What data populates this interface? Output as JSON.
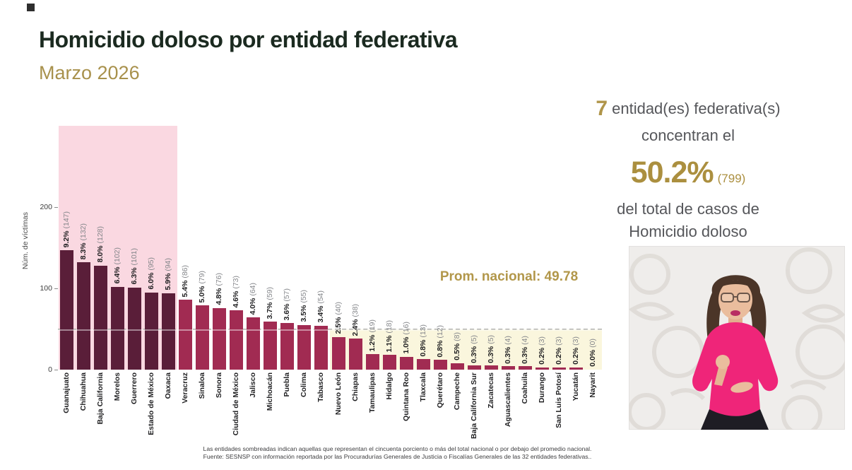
{
  "header": {
    "title": "Homicidio doloso por entidad federativa",
    "subtitle": "Marzo 2026"
  },
  "summary": {
    "count": "7",
    "line1": "entidad(es) federativa(s)",
    "line2": "concentran el",
    "pct": "50.2%",
    "pct_count": "(799)",
    "line3": "del total de casos de",
    "line4": "Homicidio doloso"
  },
  "chart_data": {
    "type": "bar",
    "title": "Homicidio doloso por entidad federativa — Marzo 2026",
    "ylabel": "Núm. de víctimas",
    "yticks": [
      0,
      100,
      200
    ],
    "ylim": [
      0,
      300
    ],
    "grid": false,
    "national_avg": 49.78,
    "national_avg_label": "Prom. nacional: 49.78",
    "shaded_top_n": 7,
    "shaded_below_avg_from_index": 16,
    "categories": [
      "Guanajuato",
      "Chihuahua",
      "Baja California",
      "Morelos",
      "Guerrero",
      "Estado de México",
      "Oaxaca",
      "Veracruz",
      "Sinaloa",
      "Sonora",
      "Ciudad de México",
      "Jalisco",
      "Michoacán",
      "Puebla",
      "Colima",
      "Tabasco",
      "Nuevo León",
      "Chiapas",
      "Tamaulipas",
      "Hidalgo",
      "Quintana Roo",
      "Tlaxcala",
      "Querétaro",
      "Campeche",
      "Baja California Sur",
      "Zacatecas",
      "Aguascalientes",
      "Coahuila",
      "Durango",
      "San Luis Potosí",
      "Yucatán",
      "Nayarit"
    ],
    "values": [
      147,
      132,
      128,
      102,
      101,
      95,
      94,
      86,
      79,
      76,
      73,
      64,
      59,
      57,
      55,
      54,
      40,
      38,
      19,
      18,
      16,
      13,
      12,
      8,
      5,
      5,
      4,
      4,
      3,
      3,
      3,
      0
    ],
    "pct_labels": [
      "9.2%",
      "8.3%",
      "8.0%",
      "6.4%",
      "6.3%",
      "6.0%",
      "5.9%",
      "5.4%",
      "5.0%",
      "4.8%",
      "4.6%",
      "4.0%",
      "3.7%",
      "3.6%",
      "3.5%",
      "3.4%",
      "2.5%",
      "2.4%",
      "1.2%",
      "1.1%",
      "1.0%",
      "0.8%",
      "0.8%",
      "0.5%",
      "0.3%",
      "0.3%",
      "0.3%",
      "0.3%",
      "0.2%",
      "0.2%",
      "0.2%",
      "0.0%"
    ],
    "legend": null
  },
  "footer": {
    "note": "Las entidades sombreadas indican aquellas que representan el cincuenta porciento o más del total nacional o por debajo del promedio nacional.",
    "source": "Fuente: SESNSP con información reportada por las Procuradurías Generales de Justicia o Fiscalías Generales de las 32 entidades federativas.."
  },
  "colors": {
    "title": "#1b2a20",
    "accent_gold": "#ab8f3f",
    "bar_dark": "#5a1e39",
    "bar_light": "#a12b52",
    "region_pink": "#fad8e1",
    "region_yellow": "#faf6dd"
  }
}
